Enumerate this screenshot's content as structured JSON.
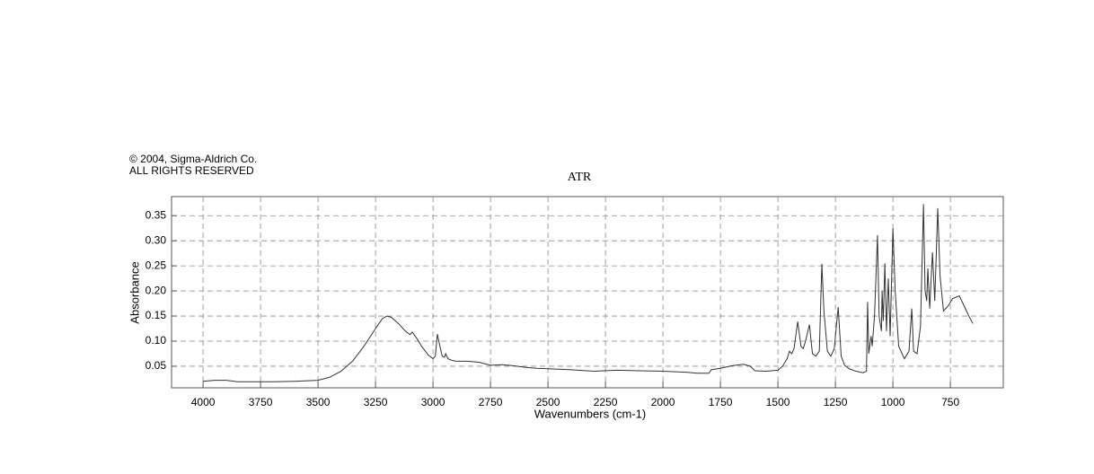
{
  "chart_data": {
    "type": "line",
    "copyright": "© 2004, Sigma-Aldrich Co.",
    "rights": "ALL RIGHTS RESERVED",
    "title": "ATR",
    "xlabel": "Wavenumbers (cm-1)",
    "ylabel": "Absorbance",
    "xlim": [
      4137,
      520
    ],
    "ylim": [
      0.007,
      0.388
    ],
    "xticks": [
      4000,
      3750,
      3500,
      3250,
      3000,
      2750,
      2500,
      2250,
      2000,
      1750,
      1500,
      1250,
      1000,
      750
    ],
    "yticks": [
      0.05,
      {
        "value": 0.1,
        "label": "0.10"
      },
      0.15,
      {
        "value": 0.2,
        "label": "0.20"
      },
      0.25,
      {
        "value": 0.3,
        "label": "0.30"
      },
      0.35
    ],
    "grid": true,
    "x": [
      4000,
      3950,
      3900,
      3850,
      3800,
      3700,
      3600,
      3500,
      3450,
      3400,
      3350,
      3300,
      3250,
      3220,
      3200,
      3180,
      3150,
      3120,
      3100,
      3090,
      3070,
      3050,
      3020,
      3000,
      2990,
      2981,
      2970,
      2960,
      2950,
      2945,
      2935,
      2920,
      2900,
      2850,
      2800,
      2750,
      2700,
      2650,
      2600,
      2550,
      2500,
      2400,
      2300,
      2200,
      2100,
      2000,
      1900,
      1850,
      1800,
      1790,
      1750,
      1700,
      1650,
      1620,
      1600,
      1550,
      1500,
      1480,
      1460,
      1450,
      1440,
      1430,
      1414,
      1400,
      1390,
      1380,
      1363,
      1350,
      1335,
      1320,
      1309,
      1300,
      1285,
      1270,
      1255,
      1238,
      1225,
      1210,
      1190,
      1160,
      1130,
      1115,
      1110,
      1105,
      1095,
      1090,
      1080,
      1067,
      1060,
      1050,
      1047,
      1042,
      1035,
      1028,
      1020,
      1012,
      1000,
      990,
      975,
      950,
      930,
      918,
      910,
      895,
      880,
      867,
      860,
      853,
      848,
      840,
      828,
      818,
      805,
      795,
      780,
      760,
      740,
      711,
      690,
      670,
      652
    ],
    "series": [
      {
        "color": "#333333",
        "values": [
          0.02,
          0.022,
          0.022,
          0.019,
          0.019,
          0.019,
          0.02,
          0.022,
          0.028,
          0.04,
          0.06,
          0.09,
          0.125,
          0.145,
          0.15,
          0.147,
          0.135,
          0.12,
          0.113,
          0.118,
          0.105,
          0.09,
          0.072,
          0.065,
          0.07,
          0.114,
          0.09,
          0.07,
          0.068,
          0.075,
          0.065,
          0.062,
          0.06,
          0.06,
          0.058,
          0.052,
          0.053,
          0.051,
          0.048,
          0.046,
          0.045,
          0.043,
          0.04,
          0.042,
          0.041,
          0.04,
          0.038,
          0.036,
          0.036,
          0.043,
          0.046,
          0.051,
          0.054,
          0.05,
          0.041,
          0.04,
          0.042,
          0.05,
          0.065,
          0.08,
          0.075,
          0.085,
          0.139,
          0.09,
          0.085,
          0.1,
          0.133,
          0.075,
          0.07,
          0.08,
          0.254,
          0.16,
          0.08,
          0.07,
          0.085,
          0.168,
          0.07,
          0.052,
          0.045,
          0.04,
          0.037,
          0.04,
          0.178,
          0.075,
          0.11,
          0.09,
          0.15,
          0.311,
          0.15,
          0.12,
          0.2,
          0.14,
          0.255,
          0.12,
          0.225,
          0.11,
          0.325,
          0.2,
          0.09,
          0.065,
          0.08,
          0.165,
          0.08,
          0.075,
          0.13,
          0.373,
          0.2,
          0.18,
          0.245,
          0.165,
          0.277,
          0.18,
          0.365,
          0.23,
          0.16,
          0.17,
          0.185,
          0.19,
          0.17,
          0.15,
          0.135
        ]
      }
    ]
  }
}
